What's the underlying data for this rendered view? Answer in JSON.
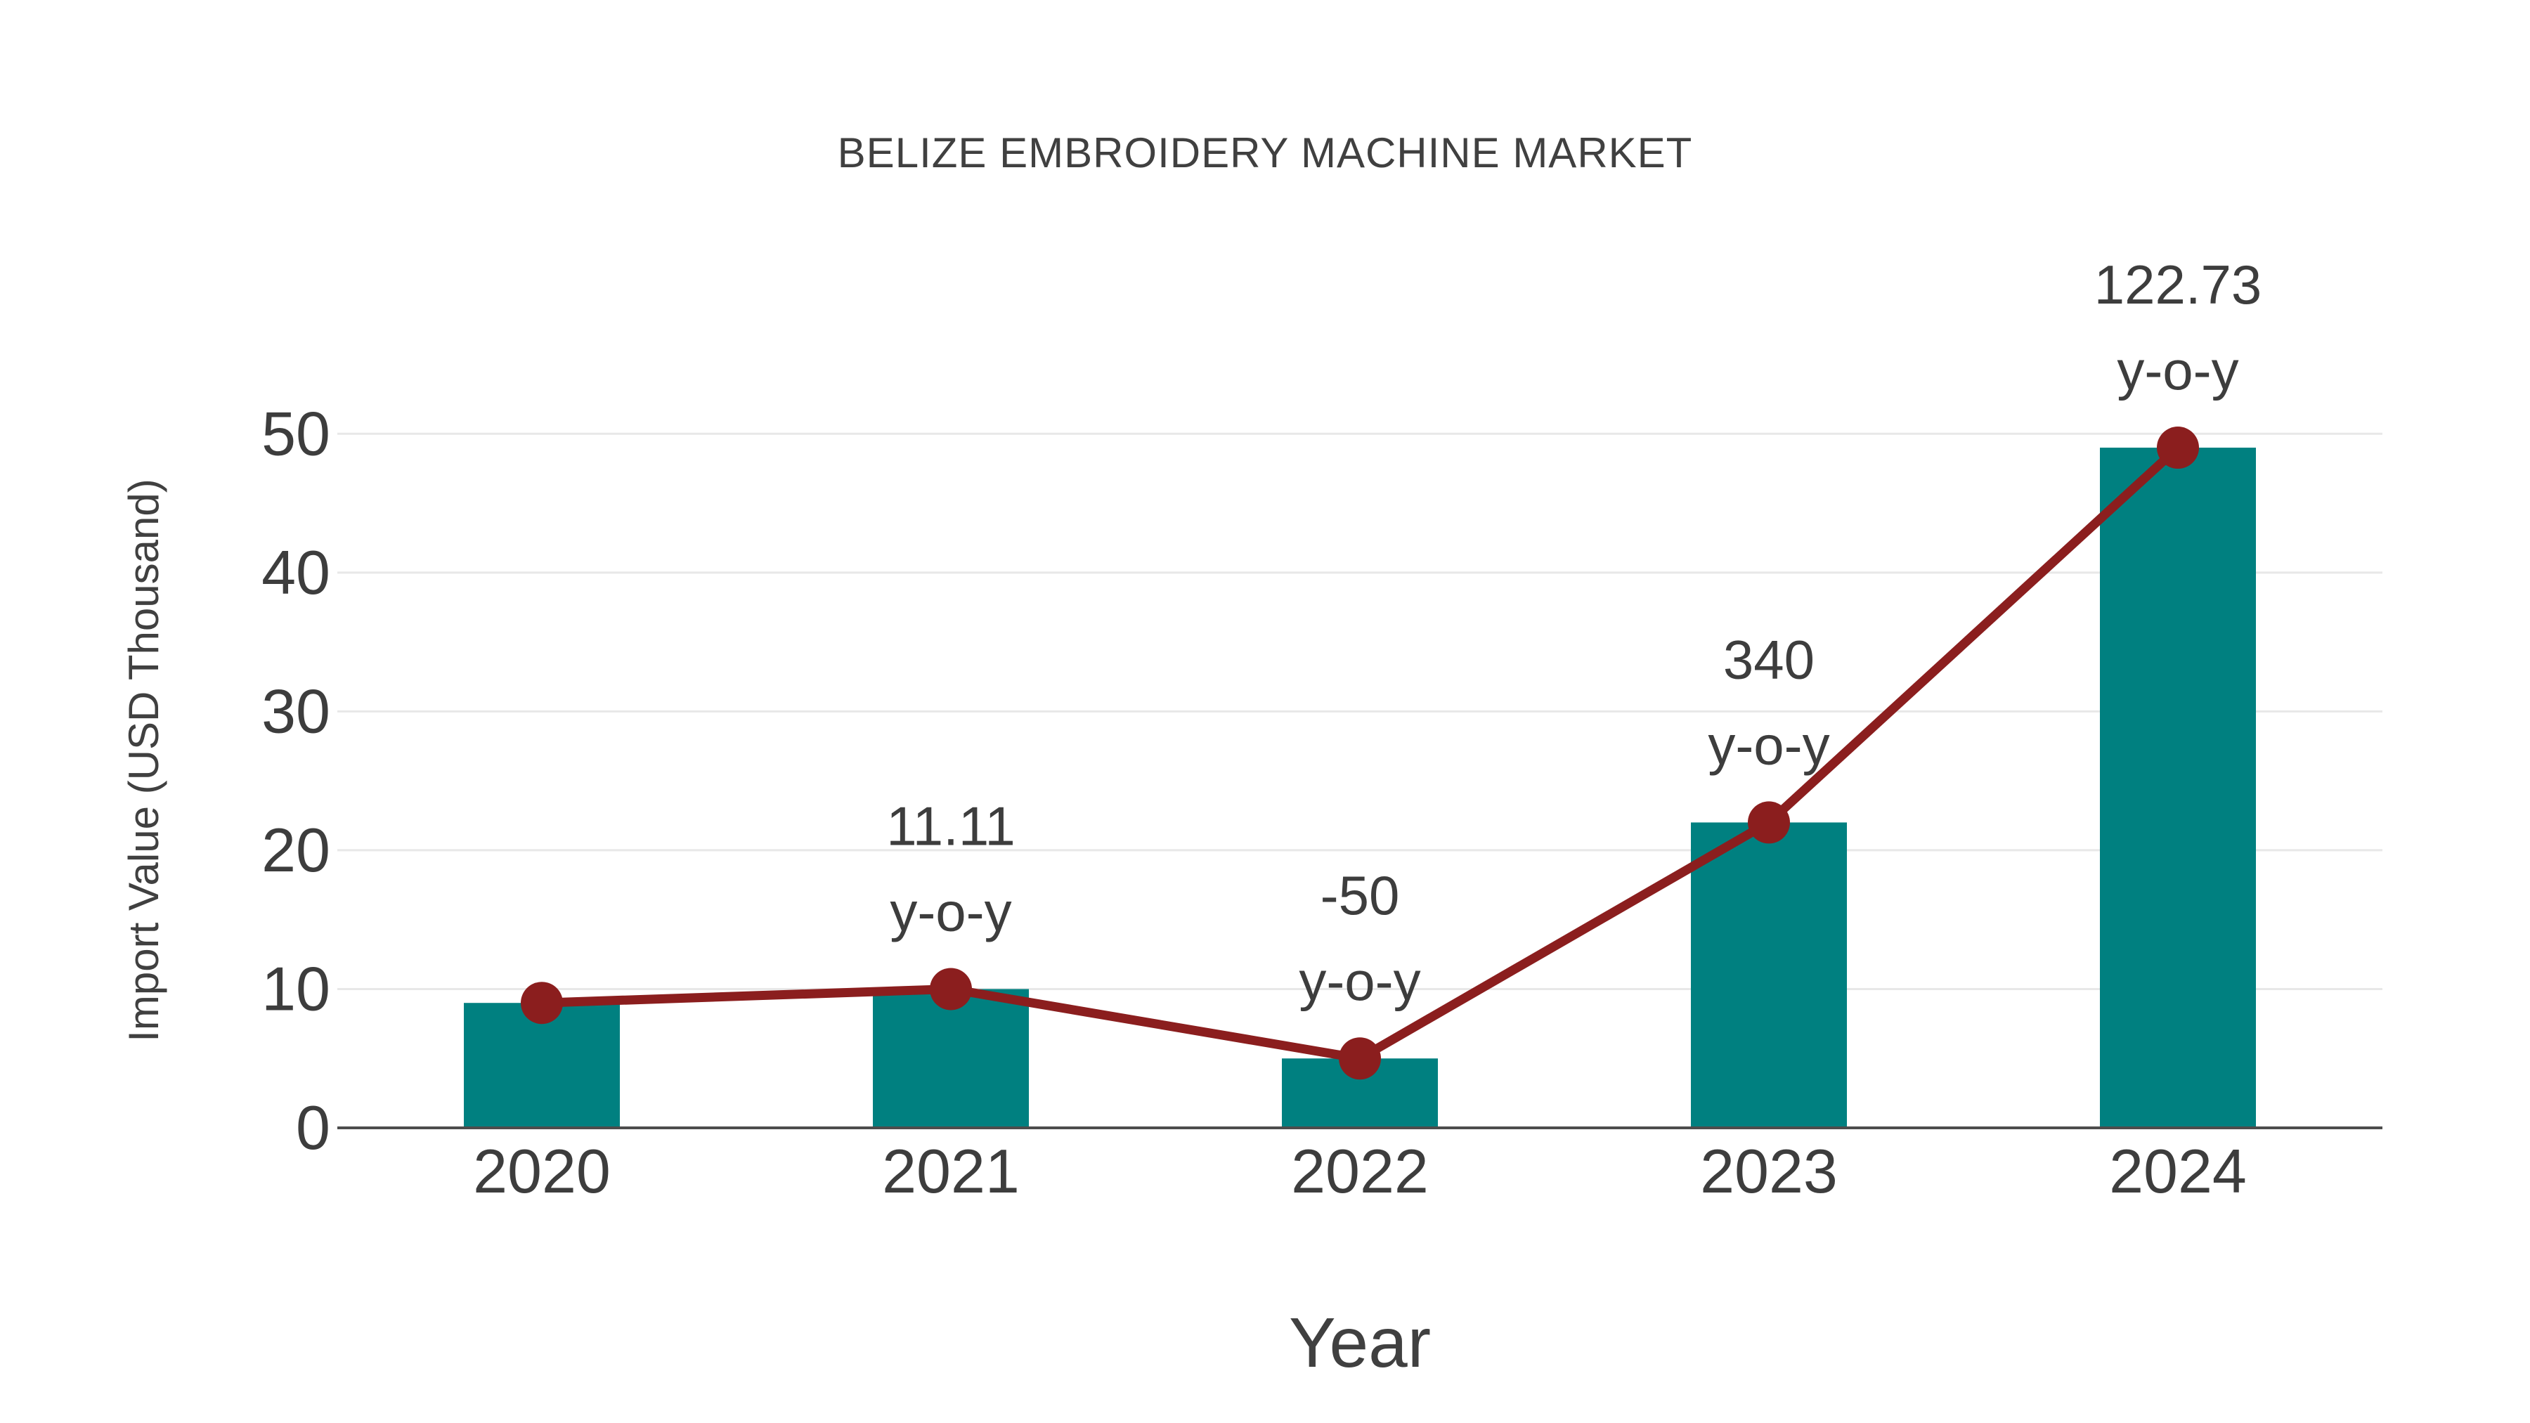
{
  "figure": {
    "background": "#ffffff"
  },
  "chart_data": {
    "type": "bar",
    "title": "BELIZE EMBROIDERY MACHINE MARKET",
    "xlabel": "Year",
    "ylabel": "Import Value (USD Thousand)",
    "categories": [
      "2020",
      "2021",
      "2022",
      "2023",
      "2024"
    ],
    "series": [
      {
        "name": "Import Value (USD Thousand)",
        "type": "bar",
        "values": [
          9,
          10,
          5,
          22,
          49
        ],
        "color": "#008080"
      },
      {
        "name": "y-o-y trend line",
        "type": "line",
        "values": [
          9,
          10,
          5,
          22,
          49
        ],
        "color": "#8B1E1E"
      }
    ],
    "annotations": [
      {
        "category": "2021",
        "line1": "11.11",
        "line2": "y-o-y"
      },
      {
        "category": "2022",
        "line1": "-50",
        "line2": "y-o-y"
      },
      {
        "category": "2023",
        "line1": "340",
        "line2": "y-o-y"
      },
      {
        "category": "2024",
        "line1": "122.73",
        "line2": "y-o-y"
      }
    ],
    "yticks": [
      0,
      10,
      20,
      30,
      40,
      50
    ],
    "ylim": [
      0,
      52.9
    ],
    "grid": true,
    "legend": false,
    "colors": {
      "bar": "#008080",
      "line": "#8B1E1E",
      "marker": "#8B1E1E",
      "text": "#3d3d3d",
      "gridline": "#e8e8e8",
      "axis": "#4d4d4d"
    }
  }
}
